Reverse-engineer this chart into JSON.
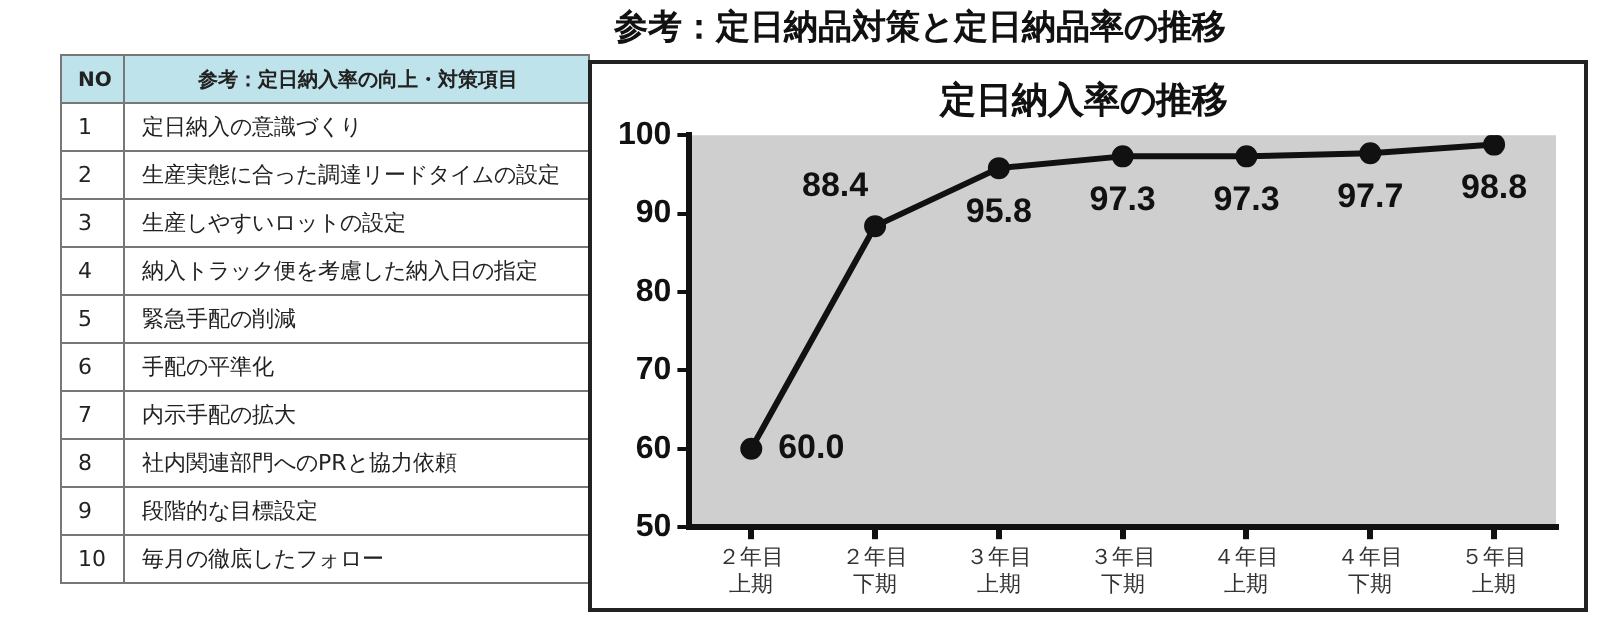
{
  "chart_data": [
    {
      "type": "other",
      "title": "参考：定日納品対策と定日納品率の推移",
      "annotations": [
        "NO",
        "参考：定日納入率の向上・対策項目",
        "1",
        "定日納入の意識づくり",
        "2",
        "生産実態に合った調達リードタイムの設定",
        "3",
        "生産しやすいロットの設定",
        "4",
        "納入トラック便を考慮した納入日の指定",
        "5",
        "緊急手配の削減",
        "6",
        "手配の平準化",
        "7",
        "内示手配の拡大",
        "8",
        "社内関連部門へのPRと協力依頼",
        "9",
        "段階的な目標設定",
        "10",
        "毎月の徹底したフォロー"
      ]
    },
    {
      "type": "line",
      "title": "定日納入率の推移",
      "categories": [
        "２年目上期",
        "２年目下期",
        "３年目上期",
        "３年目下期",
        "４年目上期",
        "４年目下期",
        "５年目上期"
      ],
      "series": [
        {
          "color": "#111111",
          "values": [
            60.0,
            88.4,
            95.8,
            97.3,
            97.3,
            97.7,
            98.8
          ]
        }
      ],
      "value_labels": [
        "60.0",
        "88.4",
        "95.8",
        "97.3",
        "97.3",
        "97.7",
        "98.8"
      ],
      "ylim": [
        50,
        100
      ],
      "yticks": [
        50,
        60,
        70,
        80,
        90,
        100
      ],
      "marker": "circle",
      "line_style": "solid",
      "grid": false,
      "legend": false
    }
  ]
}
